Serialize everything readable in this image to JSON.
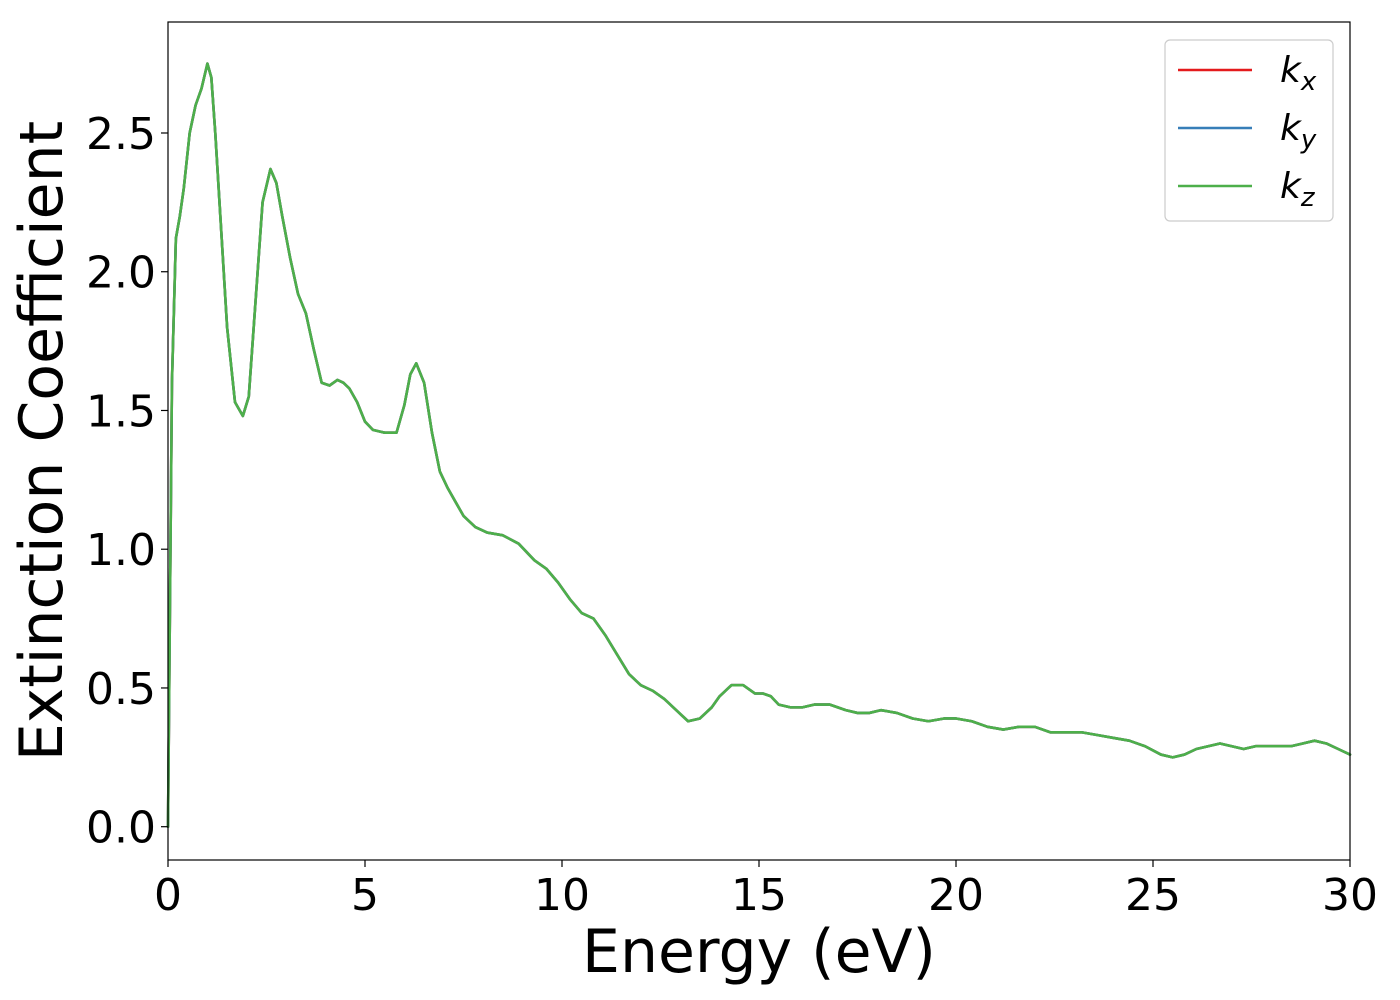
{
  "chart_data": {
    "type": "line",
    "title": "",
    "xlabel": "Energy (eV)",
    "ylabel": "Extinction Coefficient",
    "xlim": [
      0,
      30
    ],
    "ylim": [
      -0.12,
      2.9
    ],
    "xticks": [
      0,
      5,
      10,
      15,
      20,
      25,
      30
    ],
    "xtick_labels": [
      "0",
      "5",
      "10",
      "15",
      "20",
      "25",
      "30"
    ],
    "yticks": [
      0.0,
      0.5,
      1.0,
      1.5,
      2.0,
      2.5
    ],
    "ytick_labels": [
      "0.0",
      "0.5",
      "1.0",
      "1.5",
      "2.0",
      "2.5"
    ],
    "grid": false,
    "legend_position": "top-right",
    "x": [
      0,
      0.1,
      0.2,
      0.3,
      0.4,
      0.55,
      0.7,
      0.85,
      1.0,
      1.1,
      1.2,
      1.35,
      1.5,
      1.7,
      1.9,
      2.05,
      2.2,
      2.4,
      2.6,
      2.75,
      2.9,
      3.1,
      3.3,
      3.5,
      3.7,
      3.9,
      4.1,
      4.3,
      4.45,
      4.6,
      4.8,
      5.0,
      5.2,
      5.5,
      5.8,
      6.0,
      6.15,
      6.3,
      6.5,
      6.7,
      6.9,
      7.1,
      7.3,
      7.5,
      7.8,
      8.1,
      8.5,
      8.9,
      9.3,
      9.6,
      9.9,
      10.2,
      10.5,
      10.8,
      11.1,
      11.4,
      11.7,
      12.0,
      12.3,
      12.6,
      12.9,
      13.2,
      13.5,
      13.8,
      14.0,
      14.3,
      14.6,
      14.9,
      15.1,
      15.3,
      15.5,
      15.8,
      16.1,
      16.4,
      16.8,
      17.2,
      17.5,
      17.8,
      18.1,
      18.5,
      18.9,
      19.3,
      19.7,
      20.0,
      20.4,
      20.8,
      21.2,
      21.6,
      22.0,
      22.4,
      22.8,
      23.2,
      23.6,
      24.0,
      24.4,
      24.8,
      25.2,
      25.5,
      25.8,
      26.1,
      26.4,
      26.7,
      27.0,
      27.3,
      27.6,
      27.9,
      28.2,
      28.5,
      28.8,
      29.1,
      29.4,
      29.7,
      30.0
    ],
    "series": [
      {
        "name": "k_x",
        "color": "#e41a1c",
        "values": [
          0.0,
          1.6,
          2.12,
          2.2,
          2.3,
          2.5,
          2.6,
          2.66,
          2.75,
          2.7,
          2.5,
          2.15,
          1.8,
          1.53,
          1.48,
          1.55,
          1.85,
          2.25,
          2.37,
          2.32,
          2.2,
          2.05,
          1.92,
          1.85,
          1.72,
          1.6,
          1.59,
          1.61,
          1.6,
          1.58,
          1.53,
          1.46,
          1.43,
          1.42,
          1.42,
          1.52,
          1.63,
          1.67,
          1.6,
          1.42,
          1.28,
          1.22,
          1.17,
          1.12,
          1.08,
          1.06,
          1.05,
          1.02,
          0.96,
          0.93,
          0.88,
          0.82,
          0.77,
          0.75,
          0.69,
          0.62,
          0.55,
          0.51,
          0.49,
          0.46,
          0.42,
          0.38,
          0.39,
          0.43,
          0.47,
          0.51,
          0.51,
          0.48,
          0.48,
          0.47,
          0.44,
          0.43,
          0.43,
          0.44,
          0.44,
          0.42,
          0.41,
          0.41,
          0.42,
          0.41,
          0.39,
          0.38,
          0.39,
          0.39,
          0.38,
          0.36,
          0.35,
          0.36,
          0.36,
          0.34,
          0.34,
          0.34,
          0.33,
          0.32,
          0.31,
          0.29,
          0.26,
          0.25,
          0.26,
          0.28,
          0.29,
          0.3,
          0.29,
          0.28,
          0.29,
          0.29,
          0.29,
          0.29,
          0.3,
          0.31,
          0.3,
          0.28,
          0.26
        ]
      },
      {
        "name": "k_y",
        "color": "#377eb8",
        "values": [
          0.0,
          1.6,
          2.12,
          2.2,
          2.3,
          2.5,
          2.6,
          2.66,
          2.75,
          2.7,
          2.5,
          2.15,
          1.8,
          1.53,
          1.48,
          1.55,
          1.85,
          2.25,
          2.37,
          2.32,
          2.2,
          2.05,
          1.92,
          1.85,
          1.72,
          1.6,
          1.59,
          1.61,
          1.6,
          1.58,
          1.53,
          1.46,
          1.43,
          1.42,
          1.42,
          1.52,
          1.63,
          1.67,
          1.6,
          1.42,
          1.28,
          1.22,
          1.17,
          1.12,
          1.08,
          1.06,
          1.05,
          1.02,
          0.96,
          0.93,
          0.88,
          0.82,
          0.77,
          0.75,
          0.69,
          0.62,
          0.55,
          0.51,
          0.49,
          0.46,
          0.42,
          0.38,
          0.39,
          0.43,
          0.47,
          0.51,
          0.51,
          0.48,
          0.48,
          0.47,
          0.44,
          0.43,
          0.43,
          0.44,
          0.44,
          0.42,
          0.41,
          0.41,
          0.42,
          0.41,
          0.39,
          0.38,
          0.39,
          0.39,
          0.38,
          0.36,
          0.35,
          0.36,
          0.36,
          0.34,
          0.34,
          0.34,
          0.33,
          0.32,
          0.31,
          0.29,
          0.26,
          0.25,
          0.26,
          0.28,
          0.29,
          0.3,
          0.29,
          0.28,
          0.29,
          0.29,
          0.29,
          0.29,
          0.3,
          0.31,
          0.3,
          0.28,
          0.26
        ]
      },
      {
        "name": "k_z",
        "color": "#4daf4a",
        "values": [
          0.0,
          1.6,
          2.12,
          2.2,
          2.3,
          2.5,
          2.6,
          2.66,
          2.75,
          2.7,
          2.5,
          2.15,
          1.8,
          1.53,
          1.48,
          1.55,
          1.85,
          2.25,
          2.37,
          2.32,
          2.2,
          2.05,
          1.92,
          1.85,
          1.72,
          1.6,
          1.59,
          1.61,
          1.6,
          1.58,
          1.53,
          1.46,
          1.43,
          1.42,
          1.42,
          1.52,
          1.63,
          1.67,
          1.6,
          1.42,
          1.28,
          1.22,
          1.17,
          1.12,
          1.08,
          1.06,
          1.05,
          1.02,
          0.96,
          0.93,
          0.88,
          0.82,
          0.77,
          0.75,
          0.69,
          0.62,
          0.55,
          0.51,
          0.49,
          0.46,
          0.42,
          0.38,
          0.39,
          0.43,
          0.47,
          0.51,
          0.51,
          0.48,
          0.48,
          0.47,
          0.44,
          0.43,
          0.43,
          0.44,
          0.44,
          0.42,
          0.41,
          0.41,
          0.42,
          0.41,
          0.39,
          0.38,
          0.39,
          0.39,
          0.38,
          0.36,
          0.35,
          0.36,
          0.36,
          0.34,
          0.34,
          0.34,
          0.33,
          0.32,
          0.31,
          0.29,
          0.26,
          0.25,
          0.26,
          0.28,
          0.29,
          0.3,
          0.29,
          0.28,
          0.29,
          0.29,
          0.29,
          0.29,
          0.3,
          0.31,
          0.3,
          0.28,
          0.26
        ]
      }
    ],
    "legend": [
      {
        "base": "k",
        "sub": "x"
      },
      {
        "base": "k",
        "sub": "y"
      },
      {
        "base": "k",
        "sub": "z"
      }
    ]
  }
}
